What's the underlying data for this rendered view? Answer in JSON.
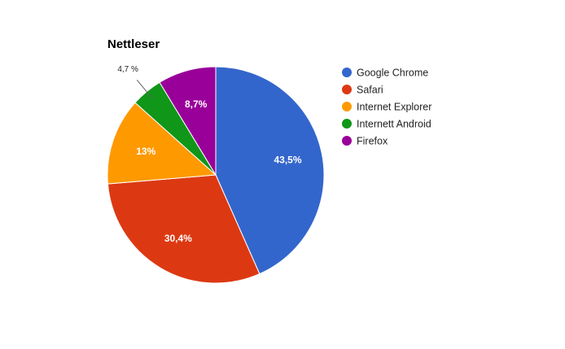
{
  "chart_data": {
    "type": "pie",
    "title": "Nettleser",
    "legend_position": "right",
    "slices": [
      {
        "name": "Google Chrome",
        "value": 43.5,
        "label": "43,5%",
        "color": "#3366cc"
      },
      {
        "name": "Safari",
        "value": 30.4,
        "label": "30,4%",
        "color": "#dc3912"
      },
      {
        "name": "Internet Explorer",
        "value": 13,
        "label": "13%",
        "color": "#ff9900"
      },
      {
        "name": "Internett Android",
        "value": 4.7,
        "label": "4,7 %",
        "color": "#109618"
      },
      {
        "name": "Firefox",
        "value": 8.7,
        "label": "8,7%",
        "color": "#990099"
      }
    ]
  }
}
